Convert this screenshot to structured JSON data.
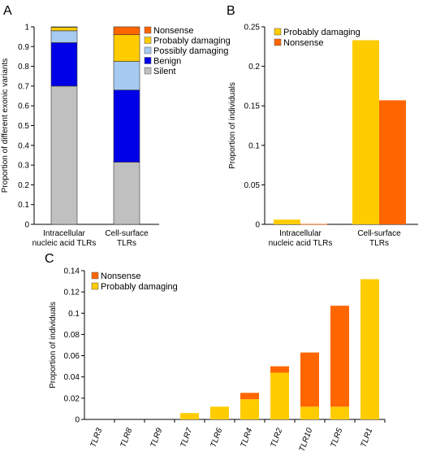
{
  "colors": {
    "silent": "#c0c0c0",
    "benign": "#0000e6",
    "possibly_damaging": "#a6caf0",
    "probably_damaging": "#ffcc00",
    "nonsense": "#ff6600"
  },
  "chart_data": [
    {
      "panel": "A",
      "type": "bar",
      "stacked": true,
      "categories": [
        "Intracellular\nnucleic acid TLRs",
        "Cell-surface\nTLRs"
      ],
      "series": [
        {
          "name": "Silent",
          "color_key": "silent",
          "values": [
            0.7,
            0.315
          ]
        },
        {
          "name": "Benign",
          "color_key": "benign",
          "values": [
            0.22,
            0.365
          ]
        },
        {
          "name": "Possibly damaging",
          "color_key": "possibly_damaging",
          "values": [
            0.06,
            0.145
          ]
        },
        {
          "name": "Probably damaging",
          "color_key": "probably_damaging",
          "values": [
            0.018,
            0.135
          ]
        },
        {
          "name": "Nonsense",
          "color_key": "nonsense",
          "values": [
            0.002,
            0.04
          ]
        }
      ],
      "legend_order": [
        "Nonsense",
        "Probably damaging",
        "Possibly damaging",
        "Benign",
        "Silent"
      ],
      "ylabel": "Proportion of different exonic variants",
      "ylim": [
        0,
        1
      ],
      "yticks": [
        "0",
        "0.1",
        "0.2",
        "0.3",
        "0.4",
        "0.5",
        "0.6",
        "0.7",
        "0.8",
        "0.9",
        "1"
      ]
    },
    {
      "panel": "B",
      "type": "bar",
      "stacked": false,
      "categories": [
        "Intracellular\nnucleic acid TLRs",
        "Cell-surface\nTLRs"
      ],
      "series": [
        {
          "name": "Probably damaging",
          "color_key": "probably_damaging",
          "values": [
            0.006,
            0.233
          ]
        },
        {
          "name": "Nonsense",
          "color_key": "nonsense",
          "values": [
            0.0005,
            0.157
          ]
        }
      ],
      "ylabel": "Proportion of individuals",
      "ylim": [
        0,
        0.25
      ],
      "yticks": [
        "0",
        "0.05",
        "0.1",
        "0.15",
        "0.2",
        "0.25"
      ]
    },
    {
      "panel": "C",
      "type": "bar",
      "stacked": true,
      "categories": [
        "TLR3",
        "TLR8",
        "TLR9",
        "TLR7",
        "TLR6",
        "TLR4",
        "TLR2",
        "TLR10",
        "TLR5",
        "TLR1"
      ],
      "series": [
        {
          "name": "Probably damaging",
          "color_key": "probably_damaging",
          "values": [
            0,
            0,
            0,
            0.006,
            0.012,
            0.019,
            0.044,
            0.012,
            0.012,
            0.132
          ]
        },
        {
          "name": "Nonsense",
          "color_key": "nonsense",
          "values": [
            0,
            0,
            0,
            0,
            0,
            0.006,
            0.006,
            0.051,
            0.095,
            0
          ]
        }
      ],
      "legend_order": [
        "Nonsense",
        "Probably damaging"
      ],
      "ylabel": "Proportion of individuals",
      "ylim": [
        0,
        0.14
      ],
      "yticks": [
        "0",
        "0.02",
        "0.04",
        "0.06",
        "0.08",
        "0.1",
        "0.12",
        "0.14"
      ]
    }
  ]
}
